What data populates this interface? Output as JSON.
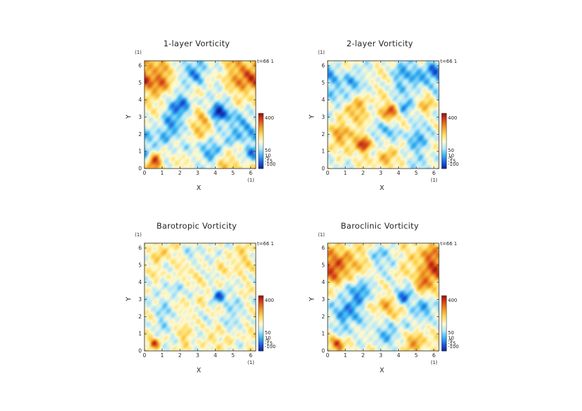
{
  "chart_data": [
    {
      "type": "heatmap",
      "title": "1-layer Vorticity",
      "xlabel": "X",
      "ylabel": "Y",
      "unit": "(1)",
      "time_label": "t=66 1",
      "xlim": [
        0,
        6.2832
      ],
      "ylim": [
        0,
        6.2832
      ],
      "xticks": [
        0,
        1,
        2,
        3,
        4,
        5,
        6
      ],
      "yticks": [
        0,
        1,
        2,
        3,
        4,
        5,
        6
      ],
      "colorbar": {
        "labels": [
          "400",
          "50",
          "10",
          "-5",
          "-15",
          "-100"
        ],
        "range": [
          -150,
          450
        ]
      },
      "features": [
        {
          "x": 4.2,
          "y": 3.2,
          "r": 0.42,
          "v": -1.0
        },
        {
          "x": 1.9,
          "y": 3.7,
          "r": 0.55,
          "v": -0.7
        },
        {
          "x": 0.55,
          "y": 0.45,
          "r": 0.28,
          "v": 1.0
        },
        {
          "x": 5.9,
          "y": 5.3,
          "r": 0.7,
          "v": 0.8
        },
        {
          "x": 0.9,
          "y": 5.2,
          "r": 0.6,
          "v": 0.55
        },
        {
          "x": 2.9,
          "y": 5.6,
          "r": 0.5,
          "v": -0.65
        },
        {
          "x": 1.3,
          "y": 2.2,
          "r": 0.75,
          "v": -0.55
        },
        {
          "x": 3.4,
          "y": 2.6,
          "r": 0.6,
          "v": 0.45
        },
        {
          "x": 5.4,
          "y": 2.3,
          "r": 0.8,
          "v": -0.5
        },
        {
          "x": 3.6,
          "y": 1.0,
          "r": 0.5,
          "v": -0.6
        },
        {
          "x": 0.3,
          "y": 3.0,
          "r": 0.5,
          "v": 0.4
        },
        {
          "x": 4.9,
          "y": 0.5,
          "r": 0.55,
          "v": 0.35
        },
        {
          "x": 6.0,
          "y": 0.8,
          "r": 0.4,
          "v": -0.55
        }
      ]
    },
    {
      "type": "heatmap",
      "title": "2-layer Vorticity",
      "xlabel": "X",
      "ylabel": "Y",
      "unit": "(1)",
      "time_label": "t=66 1",
      "xlim": [
        0,
        6.2832
      ],
      "ylim": [
        0,
        6.2832
      ],
      "xticks": [
        0,
        1,
        2,
        3,
        4,
        5,
        6
      ],
      "yticks": [
        0,
        1,
        2,
        3,
        4,
        5,
        6
      ],
      "colorbar": {
        "labels": [
          "400",
          "50",
          "10",
          "-5",
          "-15",
          "-100"
        ],
        "range": [
          -150,
          450
        ]
      },
      "features": [
        {
          "x": 3.6,
          "y": 3.3,
          "r": 0.35,
          "v": 1.0
        },
        {
          "x": 1.6,
          "y": 3.6,
          "r": 0.6,
          "v": 0.6
        },
        {
          "x": 2.1,
          "y": 1.4,
          "r": 0.3,
          "v": 0.9
        },
        {
          "x": 1.0,
          "y": 4.6,
          "r": 0.9,
          "v": -0.55
        },
        {
          "x": 4.6,
          "y": 5.3,
          "r": 0.7,
          "v": -0.6
        },
        {
          "x": 5.6,
          "y": 3.9,
          "r": 0.5,
          "v": 0.4
        },
        {
          "x": 3.0,
          "y": 2.2,
          "r": 0.6,
          "v": -0.5
        },
        {
          "x": 0.8,
          "y": 1.8,
          "r": 0.7,
          "v": 0.5
        },
        {
          "x": 5.2,
          "y": 1.6,
          "r": 0.7,
          "v": -0.45
        },
        {
          "x": 3.4,
          "y": 0.6,
          "r": 0.5,
          "v": 0.35
        },
        {
          "x": 4.3,
          "y": 3.6,
          "r": 0.35,
          "v": -0.6
        },
        {
          "x": 6.0,
          "y": 5.8,
          "r": 0.4,
          "v": -0.5
        }
      ]
    },
    {
      "type": "heatmap",
      "title": "Barotropic Vorticity",
      "xlabel": "X",
      "ylabel": "Y",
      "unit": "(1)",
      "time_label": "t=66 1",
      "xlim": [
        0,
        6.2832
      ],
      "ylim": [
        0,
        6.2832
      ],
      "xticks": [
        0,
        1,
        2,
        3,
        4,
        5,
        6
      ],
      "yticks": [
        0,
        1,
        2,
        3,
        4,
        5,
        6
      ],
      "colorbar": {
        "labels": [
          "400",
          "50",
          "10",
          "-5",
          "-15",
          "-100"
        ],
        "range": [
          -150,
          450
        ]
      },
      "features": [
        {
          "x": 4.2,
          "y": 3.2,
          "r": 0.3,
          "v": -0.85
        },
        {
          "x": 1.9,
          "y": 3.7,
          "r": 0.25,
          "v": -0.65
        },
        {
          "x": 0.55,
          "y": 0.45,
          "r": 0.22,
          "v": 1.0
        },
        {
          "x": 1.2,
          "y": 2.0,
          "r": 0.6,
          "v": -0.3
        },
        {
          "x": 5.5,
          "y": 5.1,
          "r": 0.6,
          "v": 0.3
        },
        {
          "x": 3.0,
          "y": 5.5,
          "r": 0.45,
          "v": -0.3
        },
        {
          "x": 5.0,
          "y": 2.2,
          "r": 0.6,
          "v": -0.25
        },
        {
          "x": 2.3,
          "y": 0.9,
          "r": 0.3,
          "v": 0.35
        },
        {
          "x": 0.8,
          "y": 5.6,
          "r": 0.4,
          "v": 0.3
        }
      ]
    },
    {
      "type": "heatmap",
      "title": "Baroclinic Vorticity",
      "xlabel": "X",
      "ylabel": "Y",
      "unit": "(1)",
      "time_label": "t=66 1",
      "xlim": [
        0,
        6.2832
      ],
      "ylim": [
        0,
        6.2832
      ],
      "xticks": [
        0,
        1,
        2,
        3,
        4,
        5,
        6
      ],
      "yticks": [
        0,
        1,
        2,
        3,
        4,
        5,
        6
      ],
      "colorbar": {
        "labels": [
          "400",
          "50",
          "10",
          "-5",
          "-15",
          "-100"
        ],
        "range": [
          -150,
          450
        ]
      },
      "features": [
        {
          "x": 4.2,
          "y": 3.2,
          "r": 0.4,
          "v": -1.0
        },
        {
          "x": 1.9,
          "y": 3.6,
          "r": 0.5,
          "v": -0.75
        },
        {
          "x": 0.55,
          "y": 0.45,
          "r": 0.22,
          "v": 0.9
        },
        {
          "x": 5.9,
          "y": 5.0,
          "r": 0.8,
          "v": 0.75
        },
        {
          "x": 0.9,
          "y": 5.1,
          "r": 0.7,
          "v": 0.6
        },
        {
          "x": 3.2,
          "y": 5.4,
          "r": 0.5,
          "v": -0.5
        },
        {
          "x": 1.2,
          "y": 2.1,
          "r": 0.7,
          "v": -0.6
        },
        {
          "x": 3.4,
          "y": 2.7,
          "r": 0.6,
          "v": 0.5
        },
        {
          "x": 5.4,
          "y": 2.3,
          "r": 0.7,
          "v": -0.45
        },
        {
          "x": 3.6,
          "y": 1.0,
          "r": 0.5,
          "v": -0.55
        },
        {
          "x": 4.8,
          "y": 0.6,
          "r": 0.5,
          "v": 0.4
        },
        {
          "x": 5.3,
          "y": 3.8,
          "r": 0.3,
          "v": 0.7
        }
      ]
    }
  ],
  "colors": {
    "colormap": [
      "#0a1e8c",
      "#1e5adc",
      "#3cb4f0",
      "#b4e8fa",
      "#fffad2",
      "#ffdc64",
      "#f0a028",
      "#dc501e",
      "#a01408"
    ],
    "axis": "#222222"
  }
}
